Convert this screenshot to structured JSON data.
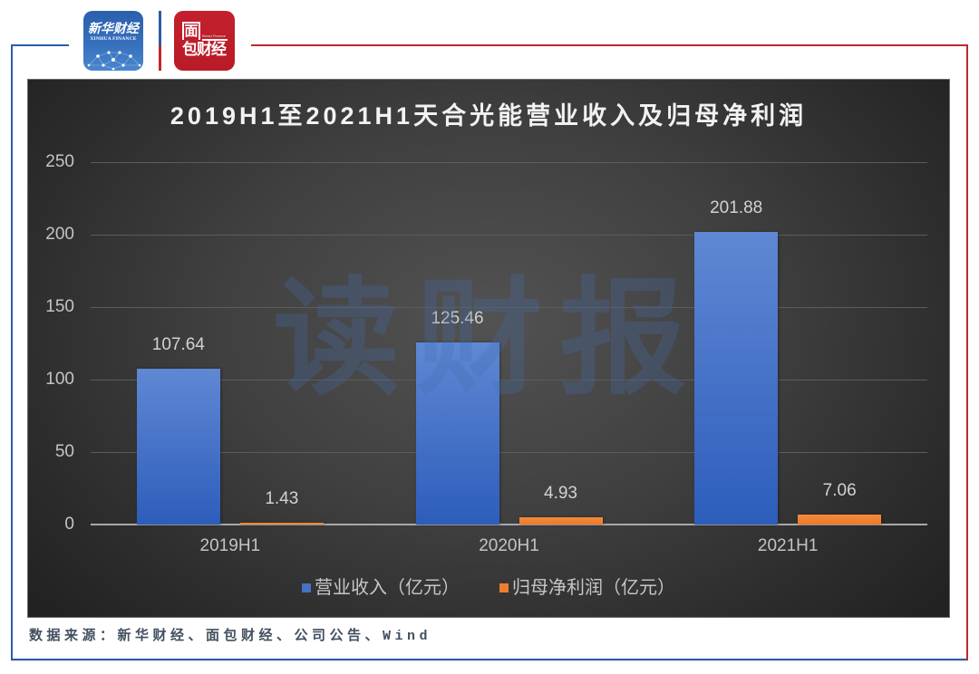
{
  "header": {
    "logos": [
      {
        "name": "xinhua-finance",
        "text_cn": "新华财经",
        "text_en": "XINHUA FINANCE",
        "color": "#2f67b5"
      },
      {
        "name": "bread-finance",
        "text_cn_top": "面",
        "text_cn_bottom": "包财经",
        "text_en": "Bread Finance",
        "color": "#c0202a"
      }
    ]
  },
  "watermark": "读财报",
  "chart_data": {
    "type": "bar",
    "title": "2019H1至2021H1天合光能营业收入及归母净利润",
    "categories": [
      "2019H1",
      "2020H1",
      "2021H1"
    ],
    "series": [
      {
        "name": "营业收入（亿元）",
        "values": [
          107.64,
          125.46,
          201.88
        ],
        "labels": [
          "107.64",
          "125.46",
          "201.88"
        ],
        "color": "#4472c4"
      },
      {
        "name": "归母净利润（亿元）",
        "values": [
          1.43,
          4.93,
          7.06
        ],
        "labels": [
          "1.43",
          "4.93",
          "7.06"
        ],
        "color": "#ed7d31"
      }
    ],
    "xlabel": "",
    "ylabel": "",
    "ylim": [
      0,
      250
    ],
    "yticks": [
      "0",
      "50",
      "100",
      "150",
      "200",
      "250"
    ],
    "grid": true,
    "legend_position": "bottom",
    "data_labels": true
  },
  "footer": {
    "source": "数据来源：新华财经、面包财经、公司公告、Wind"
  }
}
